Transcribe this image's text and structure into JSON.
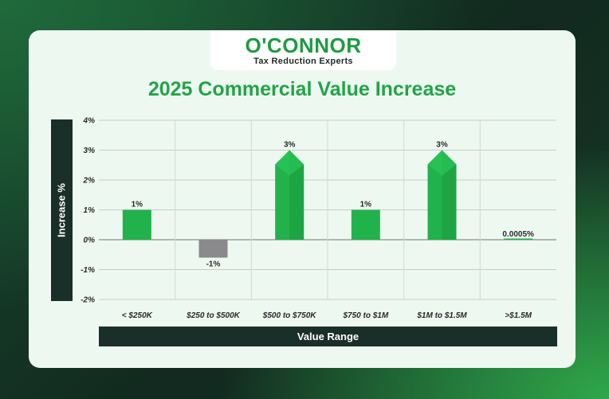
{
  "logo": {
    "name": "O'CONNOR",
    "tagline": "Tax Reduction Experts"
  },
  "chart_data": {
    "type": "bar",
    "title": "2025 Commercial Value Increase",
    "xlabel": "Value Range",
    "ylabel": "Increase %",
    "ylim": [
      -2,
      4
    ],
    "yticks": [
      4,
      3,
      2,
      1,
      0,
      -1,
      -2
    ],
    "ytick_labels": [
      "4%",
      "3%",
      "2%",
      "1%",
      "0%",
      "-1%",
      "-2%"
    ],
    "grid": true,
    "categories": [
      "< $250K",
      "$250 to $500K",
      "$500 to $750K",
      "$750 to $1M",
      "$1M to $1.5M",
      ">$1.5M"
    ],
    "values": [
      1,
      -0.6,
      3,
      1,
      3,
      0.0005
    ],
    "data_labels": [
      "1%",
      "-1%",
      "3%",
      "1%",
      "3%",
      "0.0005%"
    ],
    "colors": {
      "positive": "#22b24c",
      "positive_dark": "#1a9a3e",
      "negative": "#8a8a8c"
    }
  }
}
